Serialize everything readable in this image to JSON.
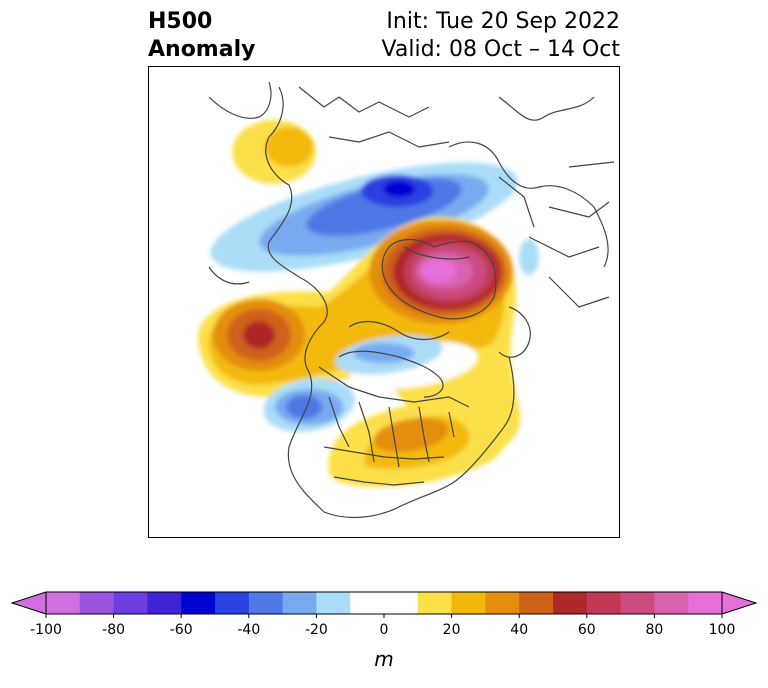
{
  "header": {
    "variable": "H500",
    "subtitle": "Anomaly",
    "init": "Init: Tue 20 Sep 2022",
    "valid": "Valid: 08 Oct – 14 Oct"
  },
  "colorbar": {
    "unit": "m",
    "ticks": [
      "-100",
      "-80",
      "-60",
      "-40",
      "-20",
      "0",
      "20",
      "40",
      "60",
      "80",
      "100"
    ],
    "levels": [
      -100,
      -90,
      -80,
      -70,
      -60,
      -50,
      -40,
      -30,
      -20,
      -10,
      10,
      20,
      30,
      40,
      50,
      60,
      70,
      80,
      90,
      100
    ],
    "colors": [
      "#d070e0",
      "#9a55e0",
      "#6f3ee0",
      "#3f24d8",
      "#0004d2",
      "#2a40e0",
      "#5078e6",
      "#78aaf0",
      "#aadcf8",
      "#ffffff",
      "#fce04a",
      "#f3b90a",
      "#e48e0e",
      "#cf621a",
      "#b02828",
      "#c03a55",
      "#cc4c80",
      "#d862ad",
      "#e470d8"
    ],
    "extend_under_color": "#d070e0",
    "extend_over_color": "#e470d8"
  },
  "map": {
    "projection": "north-polar-stereographic",
    "features": [
      "coastlines",
      "country-borders",
      "us-state-borders"
    ],
    "anomaly_centers": [
      {
        "region": "Arctic Ocean / northern Canada",
        "sign": "positive",
        "peak_m": 90
      },
      {
        "region": "Gulf of Alaska",
        "sign": "positive",
        "peak_m": 60
      },
      {
        "region": "Eastern United States",
        "sign": "positive",
        "peak_m": 40
      },
      {
        "region": "Western Russia",
        "sign": "positive",
        "peak_m": 20
      },
      {
        "region": "Northern Siberia",
        "sign": "negative",
        "peak_m": -60
      },
      {
        "region": "Western Canada / Pacific Northwest",
        "sign": "negative",
        "peak_m": -40
      },
      {
        "region": "Hudson Bay",
        "sign": "negative",
        "peak_m": -20
      }
    ]
  }
}
